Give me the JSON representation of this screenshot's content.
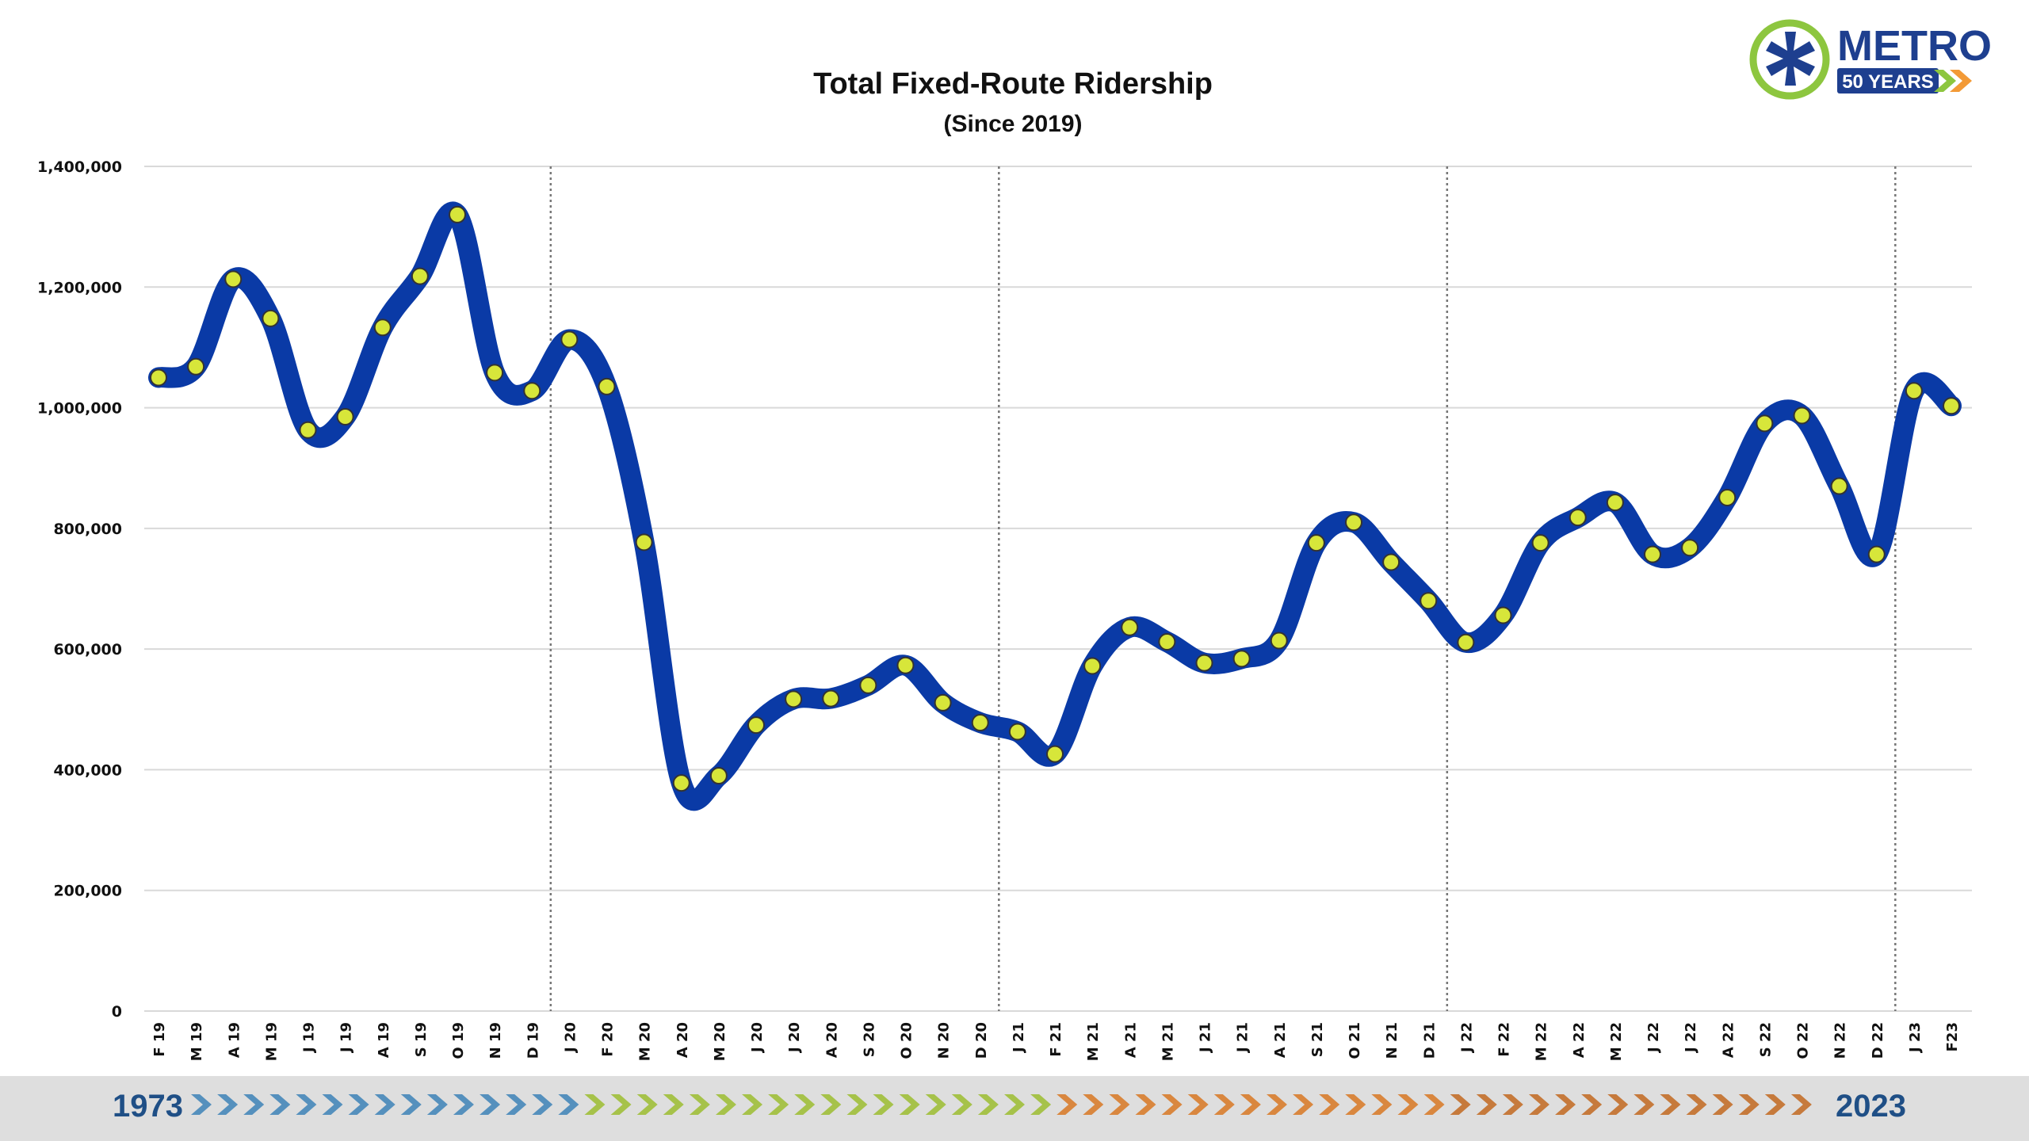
{
  "logo": {
    "name": "METRO",
    "tagline": "50 YEARS"
  },
  "banner": {
    "start_year": "1973",
    "end_year": "2023"
  },
  "colors": {
    "line": "#0a3aa6",
    "marker": "#d7e63a",
    "marker_stroke": "#333333",
    "grid": "#d9d9d9",
    "banner_bg": "#dedede",
    "year_text": "#1f4f86",
    "logo_blue": "#1e3f8f",
    "logo_green": "#8dc63f",
    "logo_orange": "#f39a36",
    "chevron_blue": "#5590bd",
    "chevron_green": "#a6c24a",
    "chevron_orange": "#d9873f",
    "chevron_rust": "#c67a3c"
  },
  "chart_data": {
    "type": "line",
    "title": "Total Fixed-Route Ridership",
    "subtitle": "(Since 2019)",
    "xlabel": "",
    "ylabel": "",
    "ylim": [
      0,
      1400000
    ],
    "yticks": [
      0,
      200000,
      400000,
      600000,
      800000,
      1000000,
      1200000,
      1400000
    ],
    "ytick_labels": [
      "0",
      "200,000",
      "400,000",
      "600,000",
      "800,000",
      "1,000,000",
      "1,200,000",
      "1,400,000"
    ],
    "grid": true,
    "year_separators_after": [
      "D 19",
      "D 20",
      "D 21",
      "D 22"
    ],
    "categories": [
      "F 19",
      "M 19",
      "A 19",
      "M 19",
      "J 19",
      "J 19",
      "A 19",
      "S 19",
      "O 19",
      "N 19",
      "D 19",
      "J 20",
      "F 20",
      "M 20",
      "A 20",
      "M 20",
      "J 20",
      "J 20",
      "A 20",
      "S 20",
      "O 20",
      "N 20",
      "D 20",
      "J 21",
      "F 21",
      "M 21",
      "A 21",
      "M 21",
      "J 21",
      "J 21",
      "A 21",
      "S 21",
      "O 21",
      "N 21",
      "D 21",
      "J 22",
      "F 22",
      "M 22",
      "A 22",
      "M 22",
      "J 22",
      "J 22",
      "A 22",
      "S 22",
      "O 22",
      "N 22",
      "D 22",
      "J 23",
      "F23"
    ],
    "values": [
      1050000,
      1068000,
      1213000,
      1148000,
      963000,
      985000,
      1133000,
      1218000,
      1320000,
      1058000,
      1028000,
      1113000,
      1035000,
      777000,
      378000,
      390000,
      474000,
      517000,
      518000,
      540000,
      573000,
      511000,
      478000,
      463000,
      426000,
      572000,
      636000,
      612000,
      577000,
      584000,
      614000,
      776000,
      810000,
      744000,
      680000,
      611000,
      656000,
      776000,
      818000,
      843000,
      757000,
      768000,
      851000,
      974000,
      987000,
      870000,
      757000,
      1028000,
      1003000
    ]
  }
}
